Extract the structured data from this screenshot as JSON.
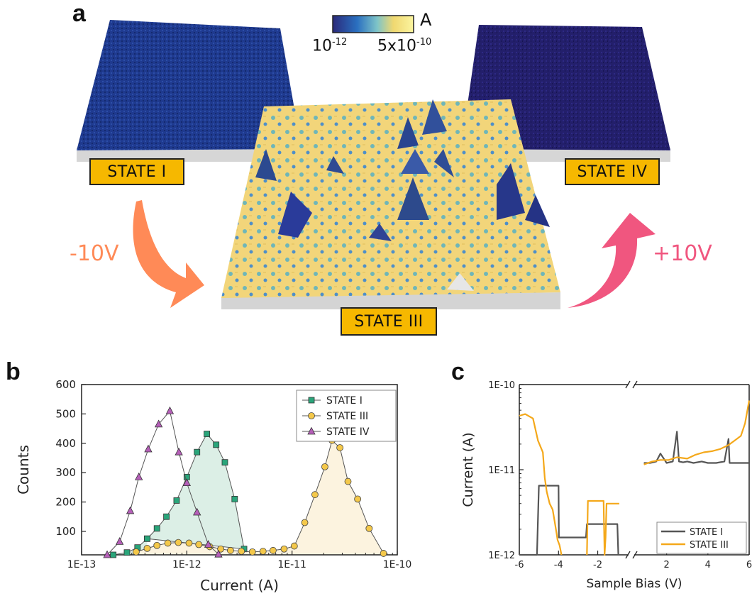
{
  "figure": {
    "panel_a": {
      "letter": "a",
      "colorbar": {
        "unit": "A",
        "min_label": "10",
        "min_exp": "-12",
        "max_label": "5x10",
        "max_exp": "-10"
      },
      "states": {
        "s1": "STATE I",
        "s3": "STATE III",
        "s4": "STATE IV"
      },
      "bias": {
        "negative": "-10V",
        "positive": "+10V"
      },
      "colors": {
        "state_box": "#f6b800",
        "neg_arrow": "#ff8a57",
        "pos_arrow": "#f0567f",
        "low_map": "#1a2f8a",
        "high_map": "#f5d97a"
      }
    },
    "panel_b": {
      "letter": "b"
    },
    "panel_c": {
      "letter": "c"
    }
  },
  "chart_data": [
    {
      "id": "b",
      "type": "line",
      "xscale": "log",
      "xlim": [
        1e-13,
        1e-10
      ],
      "ylim": [
        20,
        600
      ],
      "xlabel": "Current (A)",
      "ylabel": "Counts",
      "xticks": [
        1e-13,
        1e-12,
        1e-11,
        1e-10
      ],
      "xtick_labels": [
        "1E-13",
        "1E-12",
        "1E-11",
        "1E-10"
      ],
      "yticks": [
        100,
        200,
        300,
        400,
        500,
        600
      ],
      "ytick_labels": [
        "100",
        "200",
        "300",
        "400",
        "500",
        "600"
      ],
      "legend_position": "top-right",
      "series": [
        {
          "name": "STATE I",
          "marker": "square",
          "color": "#2aa57a",
          "fill": "#dcefe6",
          "x": [
            2e-13,
            2.7e-13,
            3.4e-13,
            4.2e-13,
            5.2e-13,
            6.4e-13,
            8e-13,
            1e-12,
            1.25e-12,
            1.55e-12,
            1.9e-12,
            2.3e-12,
            2.85e-12,
            3.5e-12,
            4.2e-13
          ],
          "y": [
            20,
            28,
            45,
            75,
            110,
            150,
            205,
            285,
            370,
            432,
            395,
            335,
            210,
            40,
            75
          ]
        },
        {
          "name": "STATE III",
          "marker": "circle",
          "color": "#f4c84a",
          "fill": "#fcf3df",
          "x": [
            3.3e-13,
            4.2e-13,
            5.2e-13,
            6.6e-13,
            8.3e-13,
            1.05e-12,
            1.3e-12,
            1.65e-12,
            2.1e-12,
            2.6e-12,
            3.3e-12,
            4.2e-12,
            5.3e-12,
            6.6e-12,
            8.4e-12,
            1.05e-11,
            1.32e-11,
            1.65e-11,
            2.05e-11,
            2.4e-11,
            2.85e-11,
            3.4e-11,
            4.2e-11,
            5.4e-11,
            7.4e-11
          ],
          "y": [
            30,
            42,
            52,
            60,
            62,
            60,
            55,
            48,
            40,
            35,
            32,
            30,
            32,
            35,
            40,
            50,
            130,
            225,
            320,
            410,
            385,
            270,
            210,
            110,
            25
          ]
        },
        {
          "name": "STATE IV",
          "marker": "triangle",
          "color": "#b55fb8",
          "fill": "none",
          "x": [
            1.75e-13,
            2.3e-13,
            2.9e-13,
            3.5e-13,
            4.3e-13,
            5.4e-13,
            6.9e-13,
            8.4e-13,
            1e-12,
            1.25e-12,
            1.6e-12,
            2e-12
          ],
          "y": [
            20,
            65,
            170,
            285,
            380,
            465,
            510,
            370,
            265,
            165,
            55,
            22
          ]
        }
      ]
    },
    {
      "id": "c",
      "type": "line",
      "yscale": "log",
      "ylim": [
        1e-12,
        1e-10
      ],
      "xlim": [
        -6,
        6
      ],
      "broken_axis": {
        "left_range": [
          -6,
          -0.5
        ],
        "right_range": [
          0.5,
          6
        ]
      },
      "xlabel": "Sample Bias (V)",
      "ylabel": "Current (A)",
      "xticks": [
        -6,
        -4,
        -2,
        2,
        4,
        6
      ],
      "xtick_labels": [
        "-6",
        "-4",
        "-2",
        "2",
        "4",
        "6"
      ],
      "yticks": [
        1e-12,
        1e-11,
        1e-10
      ],
      "ytick_labels": [
        "1E-12",
        "1E-11",
        "1E-10"
      ],
      "legend_position": "bottom-right",
      "series": [
        {
          "name": "STATE I",
          "color": "#555555",
          "segments": [
            {
              "x": [
                -6,
                -5.9,
                -5.1,
                -5.0,
                -4.0,
                -3.98,
                -3.4,
                -3.1,
                -2.8,
                -2.6,
                -2.55,
                -2.0,
                -1.5,
                -1.0,
                -0.95
              ],
              "y": [
                1e-12,
                1e-12,
                1e-12,
                6.5e-12,
                6.5e-12,
                1.6e-12,
                1.6e-12,
                1.6e-12,
                1.6e-12,
                1.6e-12,
                2.3e-12,
                2.3e-12,
                2.3e-12,
                2.3e-12,
                1e-12
              ]
            },
            {
              "x": [
                0.9,
                1.2,
                1.5,
                1.7,
                2.0,
                2.3,
                2.5,
                2.6,
                2.8,
                3.0,
                3.3,
                3.7,
                4.0,
                4.4,
                4.8,
                5.0,
                5.05,
                5.2,
                5.6,
                6.0
              ],
              "y": [
                1.2e-11,
                1.2e-11,
                1.25e-11,
                1.55e-11,
                1.2e-11,
                1.25e-11,
                2.8e-11,
                1.25e-11,
                1.22e-11,
                1.25e-11,
                1.2e-11,
                1.25e-11,
                1.2e-11,
                1.2e-11,
                1.25e-11,
                2.3e-11,
                1.2e-11,
                1.2e-11,
                1.2e-11,
                1.2e-11
              ]
            }
          ]
        },
        {
          "name": "STATE III",
          "color": "#f4a81a",
          "segments": [
            {
              "x": [
                -6,
                -5.7,
                -5.3,
                -5.05,
                -4.8,
                -4.7,
                -4.6,
                -4.45,
                -4.3,
                -4.2,
                -4.1,
                -4.05,
                -3.95,
                -3.9,
                -3.85
              ],
              "y": [
                4.3e-11,
                4.5e-11,
                4e-11,
                2.2e-11,
                1.6e-11,
                8e-12,
                5.5e-12,
                4e-12,
                3.4e-12,
                2.5e-12,
                1.8e-12,
                1.5e-12,
                1.3e-12,
                1.15e-12,
                1e-12
              ]
            },
            {
              "x": [
                -2.55,
                -2.5,
                -1.7,
                -1.65,
                -1.6,
                -1.55,
                -1.5,
                -1.45,
                -0.9
              ],
              "y": [
                1e-12,
                4.3e-12,
                4.3e-12,
                1e-12,
                1.6e-12,
                4e-12,
                4e-12,
                4e-12,
                4e-12
              ]
            },
            {
              "x": [
                0.9,
                1.3,
                1.7,
                2.1,
                2.5,
                3.0,
                3.4,
                3.8,
                4.2,
                4.6,
                5.0,
                5.3,
                5.6,
                5.8,
                6.0
              ],
              "y": [
                1.15e-11,
                1.25e-11,
                1.3e-11,
                1.3e-11,
                1.4e-11,
                1.35e-11,
                1.5e-11,
                1.6e-11,
                1.65e-11,
                1.75e-11,
                1.95e-11,
                2.2e-11,
                2.5e-11,
                3.5e-11,
                6.5e-11
              ]
            }
          ]
        }
      ]
    }
  ]
}
